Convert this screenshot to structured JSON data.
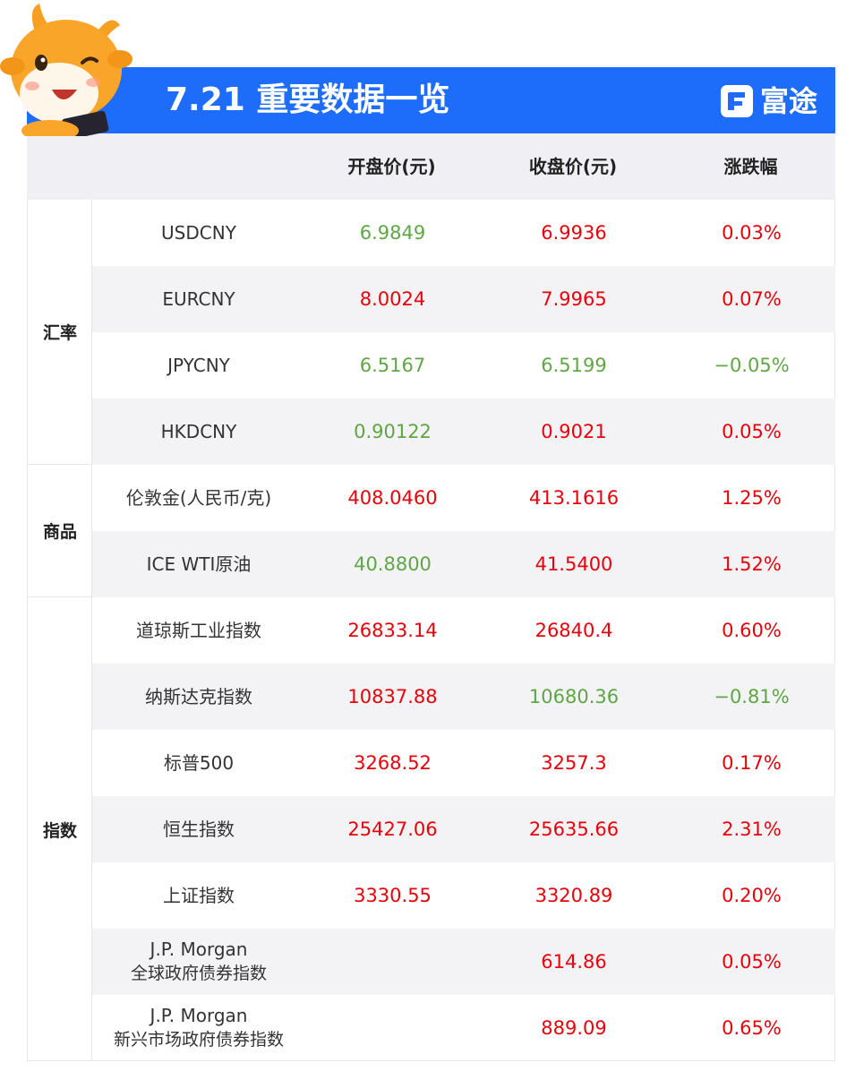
{
  "header": {
    "title": "7.21 重要数据一览",
    "brand": "富途",
    "colors": {
      "banner": "#1d6dfa",
      "up": "#e8000b",
      "down": "#5fa644"
    }
  },
  "columns": [
    "",
    "开盘价(元)",
    "收盘价(元)",
    "涨跌幅"
  ],
  "groups": [
    {
      "label": "汇率",
      "rows": 4
    },
    {
      "label": "商品",
      "rows": 2
    },
    {
      "label": "指数",
      "rows": 7
    }
  ],
  "rows": [
    {
      "name": "USDCNY",
      "open": "6.9849",
      "open_color": "green",
      "close": "6.9936",
      "close_color": "red",
      "change": "0.03%",
      "change_color": "red"
    },
    {
      "name": "EURCNY",
      "open": "8.0024",
      "open_color": "red",
      "close": "7.9965",
      "close_color": "red",
      "change": "0.07%",
      "change_color": "red"
    },
    {
      "name": "JPYCNY",
      "open": "6.5167",
      "open_color": "green",
      "close": "6.5199",
      "close_color": "green",
      "change": "−0.05%",
      "change_color": "green"
    },
    {
      "name": "HKDCNY",
      "open": "0.90122",
      "open_color": "green",
      "close": "0.9021",
      "close_color": "red",
      "change": "0.05%",
      "change_color": "red"
    },
    {
      "name": "伦敦金(人民币/克)",
      "open": "408.0460",
      "open_color": "red",
      "close": "413.1616",
      "close_color": "red",
      "change": "1.25%",
      "change_color": "red"
    },
    {
      "name": "ICE WTI原油",
      "open": "40.8800",
      "open_color": "green",
      "close": "41.5400",
      "close_color": "red",
      "change": "1.52%",
      "change_color": "red"
    },
    {
      "name": "道琼斯工业指数",
      "open": "26833.14",
      "open_color": "red",
      "close": "26840.4",
      "close_color": "red",
      "change": "0.60%",
      "change_color": "red"
    },
    {
      "name": "纳斯达克指数",
      "open": "10837.88",
      "open_color": "red",
      "close": "10680.36",
      "close_color": "green",
      "change": "−0.81%",
      "change_color": "green"
    },
    {
      "name": "标普500",
      "open": "3268.52",
      "open_color": "red",
      "close": "3257.3",
      "close_color": "red",
      "change": "0.17%",
      "change_color": "red"
    },
    {
      "name": "恒生指数",
      "open": "25427.06",
      "open_color": "red",
      "close": "25635.66",
      "close_color": "red",
      "change": "2.31%",
      "change_color": "red"
    },
    {
      "name": "上证指数",
      "open": "3330.55",
      "open_color": "red",
      "close": "3320.89",
      "close_color": "red",
      "change": "0.20%",
      "change_color": "red"
    },
    {
      "name": "J.P. Morgan",
      "name2": "全球政府债券指数",
      "open": "",
      "open_color": "red",
      "close": "614.86",
      "close_color": "red",
      "change": "0.05%",
      "change_color": "red"
    },
    {
      "name": "J.P. Morgan",
      "name2": "新兴市场政府债券指数",
      "open": "",
      "open_color": "red",
      "close": "889.09",
      "close_color": "red",
      "change": "0.65%",
      "change_color": "red"
    }
  ]
}
